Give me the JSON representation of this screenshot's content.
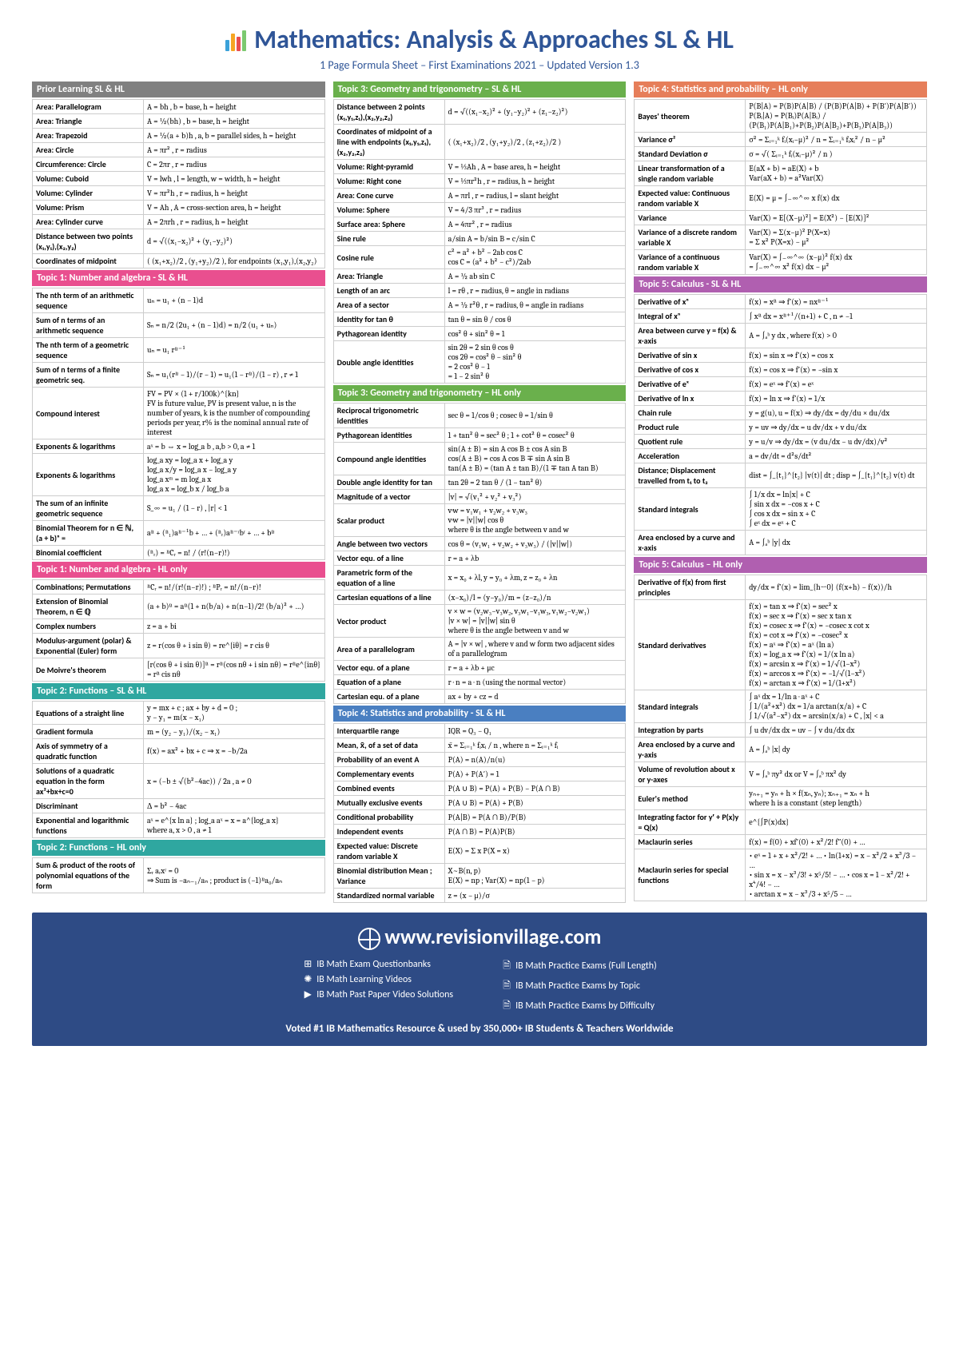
{
  "title": "Mathematics: Analysis & Approaches SL & HL",
  "subtitle": "1 Page Formula Sheet – First Examinations 2021 – Updated Version 1.3",
  "logo_colors": [
    "#3ba1d9",
    "#f6a623",
    "#e94f4f",
    "#7bc96f"
  ],
  "section_colors": {
    "grey": "#808080",
    "pink": "#e94f8f",
    "teal": "#2fa7a0",
    "green": "#6ab04c",
    "coral": "#e67e5a",
    "blue": "#4a7fc1",
    "purple": "#b05fb0"
  },
  "columns": [
    [
      {
        "title": "Prior Learning SL & HL",
        "color": "grey",
        "rows": [
          [
            "Area: Parallelogram",
            "A = bh , b = base, h = height"
          ],
          [
            "Area: Triangle",
            "A = ½(bh) , b = base, h = height"
          ],
          [
            "Area: Trapezoid",
            "A = ½(a + b)h , a, b = parallel sides, h = height"
          ],
          [
            "Area: Circle",
            "A = πr² , r = radius"
          ],
          [
            "Circumference: Circle",
            "C = 2πr , r = radius"
          ],
          [
            "Volume: Cuboid",
            "V = lwh , l = length, w = width, h = height"
          ],
          [
            "Volume: Cylinder",
            "V = πr²h , r = radius, h = height"
          ],
          [
            "Volume: Prism",
            "V = Ah , A = cross-section area, h = height"
          ],
          [
            "Area: Cylinder curve",
            "A = 2πrh , r = radius, h = height"
          ],
          [
            "Distance between two points (x₁,y₁),(x₂,y₂)",
            "d = √((x₁−x₂)² + (y₁−y₂)²)"
          ],
          [
            "Coordinates of midpoint",
            "( (x₁+x₂)/2 , (y₁+y₂)/2 ), for endpoints (x₁,y₁),(x₂,y₂)"
          ]
        ]
      },
      {
        "title": "Topic 1: Number and algebra - SL & HL",
        "color": "pink",
        "rows": [
          [
            "The nth term of an arithmetic sequence",
            "uₙ = u₁ + (n − 1)d"
          ],
          [
            "Sum of n terms of an arithmetic sequence",
            "Sₙ = n/2 (2u₁ + (n − 1)d) = n/2 (u₁ + uₙ)"
          ],
          [
            "The nth term of a geometric sequence",
            "uₙ = u₁ rⁿ⁻¹"
          ],
          [
            "Sum of n terms of a finite geometric seq.",
            "Sₙ = u₁(rⁿ − 1)/(r − 1) = u₁(1 − rⁿ)/(1 − r) , r ≠ 1"
          ],
          [
            "Compound interest",
            "FV = PV × (1 + r/100k)^{kn}\nFV is future value, PV is present value, n is the number of years, k is the number of compounding periods per year, r% is the nominal annual rate of interest"
          ],
          [
            "Exponents & logarithms",
            "aˣ = b ⇔ x = log_a b , a,b > 0, a ≠ 1"
          ],
          [
            "Exponents & logarithms",
            "log_a xy = log_a x + log_a y\nlog_a x/y = log_a x − log_a y\nlog_a xᵐ = m log_a x\nlog_a x = log_b x / log_b a"
          ],
          [
            "The sum of an infinite geometric sequence",
            "S_∞ = u₁ / (1 − r) , |r| < 1"
          ],
          [
            "Binomial Theorem for n ∈ ℕ, (a + b)ⁿ =",
            "aⁿ + (ⁿ₁)aⁿ⁻¹b + … + (ⁿᵣ)aⁿ⁻ʳbʳ + … + bⁿ"
          ],
          [
            "Binomial coefficient",
            "(ⁿᵣ) = ⁿCᵣ = n! / (r!(n−r)!)"
          ]
        ]
      },
      {
        "title": "Topic 1: Number and algebra - HL only",
        "color": "pink",
        "rows": [
          [
            "Combinations; Permutations",
            "ⁿCᵣ = n!/(r!(n−r)!)  ;  ⁿPᵣ = n!/(n−r)!"
          ],
          [
            "Extension of Binomial Theorem, n ∈ ℚ",
            "(a + b)ⁿ = aⁿ(1 + n(b/a) + n(n−1)/2! (b/a)² + …)"
          ],
          [
            "Complex numbers",
            "z = a + bi"
          ],
          [
            "Modulus-argument (polar) & Exponential (Euler) form",
            "z = r(cos θ + i sin θ) = re^{iθ} = r cis θ"
          ],
          [
            "De Moivre's theorem",
            "[r(cos θ + i sin θ)]ⁿ = rⁿ(cos nθ + i sin nθ) = rⁿe^{inθ} = rⁿ cis nθ"
          ]
        ]
      },
      {
        "title": "Topic 2: Functions – SL & HL",
        "color": "teal",
        "rows": [
          [
            "Equations of a straight line",
            "y = mx + c  ;  ax + by + d = 0  ;\ny − y₁ = m(x − x₁)"
          ],
          [
            "Gradient formula",
            "m = (y₂ − y₁)/(x₂ − x₁)"
          ],
          [
            "Axis of symmetry of a quadratic function",
            "f(x) = ax² + bx + c ⇒ x = −b/2a"
          ],
          [
            "Solutions of a quadratic equation in the form ax²+bx+c=0",
            "x = (−b ± √(b²−4ac)) / 2a , a ≠ 0"
          ],
          [
            "Discriminant",
            "Δ = b² − 4ac"
          ],
          [
            "Exponential and logarithmic functions",
            "aˣ = e^{x ln a} ; log_a aˣ = x = a^{log_a x}\nwhere a, x > 0 , a ≠ 1"
          ]
        ]
      },
      {
        "title": "Topic 2: Functions – HL only",
        "color": "teal",
        "rows": [
          [
            "Sum & product of the roots of polynomial equations of the form",
            "Σᵣ aᵣxʳ = 0\n⇒ Sum is −aₙ₋₁/aₙ ; product is (−1)ⁿa₀/aₙ"
          ]
        ]
      }
    ],
    [
      {
        "title": "Topic 3: Geometry and trigonometry – SL & HL",
        "color": "green",
        "rows": [
          [
            "Distance between 2 points (x₁,y₁,z₁),(x₂,y₂,z₂)",
            "d = √((x₁−x₂)² + (y₁−y₂)² + (z₁−z₂)²)"
          ],
          [
            "Coordinates of midpoint of a line with endpoints (x₁,y₁,z₁),(x₂,y₂,z₂)",
            "( (x₁+x₂)/2 , (y₁+y₂)/2 , (z₁+z₂)/2 )"
          ],
          [
            "Volume: Right-pyramid",
            "V = ⅓Ah , A = base area, h = height"
          ],
          [
            "Volume: Right cone",
            "V = ⅓πr²h , r = radius, h = height"
          ],
          [
            "Area: Cone curve",
            "A = πrl , r = radius, l = slant height"
          ],
          [
            "Volume: Sphere",
            "V = 4/3 πr³ , r = radius"
          ],
          [
            "Surface area: Sphere",
            "A = 4πr² , r = radius"
          ],
          [
            "Sine rule",
            "a/sin A = b/sin B = c/sin C"
          ],
          [
            "Cosine rule",
            "c² = a² + b² − 2ab cos C\ncos C = (a² + b² − c²)/2ab"
          ],
          [
            "Area: Triangle",
            "A = ½ ab sin C"
          ],
          [
            "Length of an arc",
            "l = rθ , r = radius, θ = angle in radians"
          ],
          [
            "Area of a sector",
            "A = ½ r²θ , r = radius, θ = angle in radians"
          ],
          [
            "Identity for tan θ",
            "tan θ = sin θ / cos θ"
          ],
          [
            "Pythagorean identity",
            "cos² θ + sin² θ = 1"
          ],
          [
            "Double angle identities",
            "sin 2θ = 2 sin θ cos θ\ncos 2θ = cos² θ − sin² θ\n         = 2 cos² θ − 1\n         = 1 − 2 sin² θ"
          ]
        ]
      },
      {
        "title": "Topic 3: Geometry and trigonometry – HL only",
        "color": "green",
        "rows": [
          [
            "Reciprocal trigonometric identities",
            "sec θ = 1/cos θ  ;  cosec θ = 1/sin θ"
          ],
          [
            "Pythagorean identities",
            "1 + tan² θ = sec² θ ;  1 + cot² θ = cosec² θ"
          ],
          [
            "Compound angle identities",
            "sin(A ± B) = sin A cos B ± cos A sin B\ncos(A ± B) = cos A cos B ∓ sin A sin B\ntan(A ± B) = (tan A ± tan B)/(1 ∓ tan A tan B)"
          ],
          [
            "Double angle identity for tan",
            "tan 2θ = 2 tan θ / (1 − tan² θ)"
          ],
          [
            "Magnitude of a vector",
            "|v| = √(v₁² + v₂² + v₃²)"
          ],
          [
            "Scalar product",
            "v·w = v₁w₁ + v₂w₂ + v₃w₃\nv·w = |v||w| cos θ\nwhere θ is the angle between v and w"
          ],
          [
            "Angle between two vectors",
            "cos θ = (v₁w₁ + v₂w₂ + v₃w₃) / (|v||w|)"
          ],
          [
            "Vector equ. of a line",
            "r = a + λb"
          ],
          [
            "Parametric form of the equation of a line",
            "x = x₀ + λl, y = y₀ + λm, z = z₀ + λn"
          ],
          [
            "Cartesian equations of a line",
            "(x−x₀)/l = (y−y₀)/m = (z−z₀)/n"
          ],
          [
            "Vector product",
            "v × w = (v₂w₃−v₃w₂, v₃w₁−v₁w₃, v₁w₂−v₂w₁)\n|v × w| = |v||w| sin θ\nwhere θ is the angle between v and w"
          ],
          [
            "Area of a parallelogram",
            "A = |v × w| , where v and w form two adjacent sides of a parallelogram"
          ],
          [
            "Vector equ. of a plane",
            "r = a + λb + μc"
          ],
          [
            "Equation of a plane",
            "r · n = a · n  (using the normal vector)"
          ],
          [
            "Cartesian equ. of a plane",
            "ax + by + cz = d"
          ]
        ]
      },
      {
        "title": "Topic 4: Statistics and probability - SL & HL",
        "color": "blue",
        "rows": [
          [
            "Interquartile range",
            "IQR = Q₃ − Q₁"
          ],
          [
            "Mean, x̄, of a set of data",
            "x̄ = Σᵢ₌₁ᵏ fᵢxᵢ / n , where n = Σᵢ₌₁ᵏ fᵢ"
          ],
          [
            "Probability of an event A",
            "P(A) = n(A)/n(u)"
          ],
          [
            "Complementary events",
            "P(A) + P(A′) = 1"
          ],
          [
            "Combined events",
            "P(A ∪ B) = P(A) + P(B) − P(A ∩ B)"
          ],
          [
            "Mutually exclusive events",
            "P(A ∪ B) = P(A) + P(B)"
          ],
          [
            "Conditional probability",
            "P(A|B) = P(A ∩ B)/P(B)"
          ],
          [
            "Independent events",
            "P(A ∩ B) = P(A)P(B)"
          ],
          [
            "Expected value: Discrete random variable X",
            "E(X) = Σ x P(X = x)"
          ],
          [
            "Binomial distribution Mean ; Variance",
            "X~B(n, p)\nE(X) = np  ;  Var(X) = np(1 − p)"
          ],
          [
            "Standardized normal variable",
            "z = (x − μ)/σ"
          ]
        ]
      }
    ],
    [
      {
        "title": "Topic 4: Statistics and probability – HL only",
        "color": "coral",
        "rows": [
          [
            "Bayes' theorem",
            "P(B|A) = P(B)P(A|B) / (P(B)P(A|B) + P(B′)P(A|B′))\nP(Bᵢ|A) = P(Bᵢ)P(A|Bᵢ) / (P(B₁)P(A|B₁)+P(B₂)P(A|B₂)+P(B₃)P(A|B₃))"
          ],
          [
            "Variance σ²",
            "σ² = Σᵢ₌₁ᵏ fᵢ(xᵢ−μ)² / n = Σᵢ₌₁ᵏ fᵢxᵢ² / n − μ²"
          ],
          [
            "Standard Deviation σ",
            "σ = √( Σᵢ₌₁ᵏ fᵢ(xᵢ−μ)² / n )"
          ],
          [
            "Linear transformation of a single random variable",
            "E(aX + b) = aE(X) + b\nVar(aX + b) = a²Var(X)"
          ],
          [
            "Expected value: Continuous random variable X",
            "E(X) = μ = ∫₋∞^∞ x f(x) dx"
          ],
          [
            "Variance",
            "Var(X) = E[(X−μ)²] = E(X²) − [E(X)]²"
          ],
          [
            "Variance of a discrete random variable X",
            "Var(X) = Σ(x−μ)² P(X=x)\n       = Σ x² P(X=x) − μ²"
          ],
          [
            "Variance of a continuous random variable X",
            "Var(X) = ∫₋∞^∞ (x−μ)² f(x) dx\n       = ∫₋∞^∞ x² f(x) dx − μ²"
          ]
        ]
      },
      {
        "title": "Topic 5: Calculus - SL & HL",
        "color": "purple",
        "rows": [
          [
            "Derivative of xⁿ",
            "f(x) = xⁿ ⇒ f′(x) = nxⁿ⁻¹"
          ],
          [
            "Integral of xⁿ",
            "∫ xⁿ dx = xⁿ⁺¹/(n+1) + C , n ≠ −1"
          ],
          [
            "Area between curve y = f(x) & x-axis",
            "A = ∫ₐᵇ y dx ,    where f(x) > 0"
          ],
          [
            "Derivative of sin x",
            "f(x) = sin x ⇒ f′(x) = cos x"
          ],
          [
            "Derivative of cos x",
            "f(x) = cos x ⇒ f′(x) = −sin x"
          ],
          [
            "Derivative of eˣ",
            "f(x) = eˣ ⇒ f′(x) = eˣ"
          ],
          [
            "Derivative of ln x",
            "f(x) = ln x ⇒ f′(x) = 1/x"
          ],
          [
            "Chain rule",
            "y = g(u), u = f(x) ⇒ dy/dx = dy/du × du/dx"
          ],
          [
            "Product rule",
            "y = uv ⇒ dy/dx = u dv/dx + v du/dx"
          ],
          [
            "Quotient rule",
            "y = u/v ⇒ dy/dx = (v du/dx − u dv/dx)/v²"
          ],
          [
            "Acceleration",
            "a = dv/dt = d²s/dt²"
          ],
          [
            "Distance; Displacement travelled from t₁ to t₂",
            "dist = ∫_{t₁}^{t₂} |v(t)| dt  ;  disp = ∫_{t₁}^{t₂} v(t) dt"
          ],
          [
            "Standard integrals",
            "∫ 1/x dx = ln|x| + C\n∫ sin x dx = −cos x + C\n∫ cos x dx = sin x + C\n∫ eˣ dx = eˣ + C"
          ],
          [
            "Area enclosed by a curve and x-axis",
            "A = ∫ₐᵇ |y| dx"
          ]
        ]
      },
      {
        "title": "Topic 5: Calculus – HL only",
        "color": "purple",
        "rows": [
          [
            "Derivative of f(x) from first principles",
            "dy/dx = f′(x) = lim_{h→0} (f(x+h) − f(x))/h"
          ],
          [
            "Standard derivatives",
            "f(x) = tan x ⇒ f′(x) = sec² x\nf(x) = sec x ⇒ f′(x) = sec x tan x\nf(x) = cosec x ⇒ f′(x) = −cosec x cot x\nf(x) = cot x ⇒ f′(x) = −cosec² x\nf(x) = aˣ ⇒ f′(x) = aˣ (ln a)\nf(x) = log_a x ⇒ f′(x) = 1/(x ln a)\nf(x) = arcsin x ⇒ f′(x) = 1/√(1−x²)\nf(x) = arccos x ⇒ f′(x) = −1/√(1−x²)\nf(x) = arctan x ⇒ f′(x) = 1/(1+x²)"
          ],
          [
            "Standard integrals",
            "∫ aˣ dx = 1/ln a · aˣ + C\n∫ 1/(a²+x²) dx = 1/a arctan(x/a) + C\n∫ 1/√(a²−x²) dx = arcsin(x/a) + C , |x| < a"
          ],
          [
            "Integration by parts",
            "∫ u dv/dx dx = uv − ∫ v du/dx dx"
          ],
          [
            "Area enclosed by a curve and y-axis",
            "A = ∫ₐᵇ |x| dy"
          ],
          [
            "Volume of revolution about x or y-axes",
            "V = ∫ₐᵇ πy² dx  or  V = ∫ₐᵇ πx² dy"
          ],
          [
            "Euler's method",
            "yₙ₊₁ = yₙ + h × f(xₙ, yₙ); xₙ₊₁ = xₙ + h\nwhere h is a constant (step length)"
          ],
          [
            "Integrating factor for y′ + P(x)y = Q(x)",
            "e^{∫P(x)dx}"
          ],
          [
            "Maclaurin series",
            "f(x) = f(0) + xf′(0) + x²/2! f″(0) + …"
          ],
          [
            "Maclaurin series for special functions",
            "• eˣ = 1 + x + x²/2! + …   • ln(1+x) = x − x²/2 + x³/3 − …\n• sin x = x − x³/3! + x⁵/5! − …  • cos x = 1 − x²/2! + x⁴/4! − …\n• arctan x = x − x³/3 + x⁵/5 − …"
          ]
        ]
      }
    ]
  ],
  "footer": {
    "url": "www.revisionvillage.com",
    "links_left": [
      {
        "icon": "⊞",
        "text": "IB Math Exam Questionbanks"
      },
      {
        "icon": "✺",
        "text": "IB Math Learning Videos"
      },
      {
        "icon": "▶",
        "text": "IB Math Past Paper Video Solutions"
      }
    ],
    "links_right": [
      {
        "icon": "🗎",
        "text": "IB Math Practice Exams (Full Length)"
      },
      {
        "icon": "🗎",
        "text": "IB Math Practice Exams by Topic"
      },
      {
        "icon": "🗎",
        "text": "IB Math Practice Exams by Difficulty"
      }
    ],
    "tagline": "Voted #1 IB Mathematics Resource & used by 350,000+ IB Students & Teachers Worldwide"
  }
}
